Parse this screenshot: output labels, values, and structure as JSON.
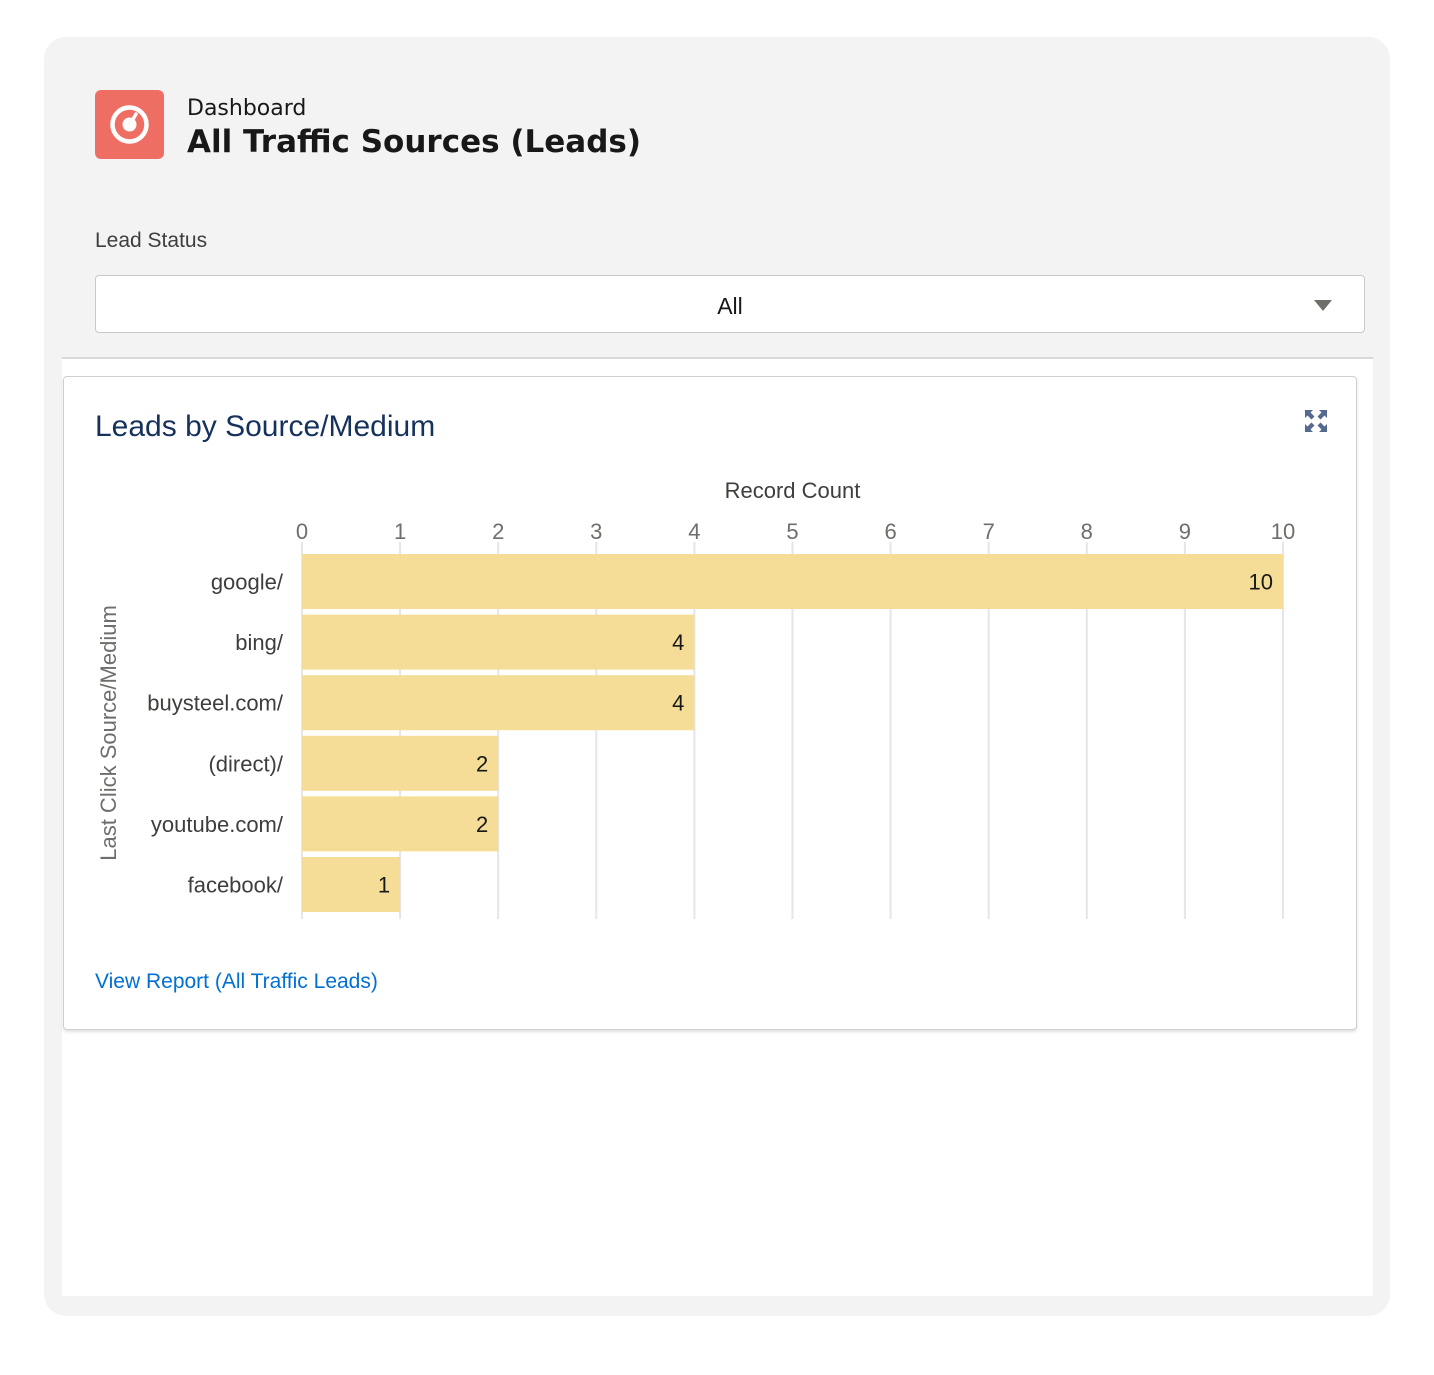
{
  "header": {
    "label": "Dashboard",
    "title": "All Traffic Sources (Leads)",
    "icon": "dashboard-gauge-icon",
    "icon_color": "#ef6e64"
  },
  "filter": {
    "label": "Lead Status",
    "value": "All",
    "caret_icon": "chevron-down-icon"
  },
  "card": {
    "title": "Leads by Source/Medium",
    "expand_icon": "expand-icon",
    "report_link": "View Report (All Traffic Leads)"
  },
  "chart_data": {
    "type": "bar",
    "orientation": "horizontal",
    "title": "",
    "xlabel": "Record Count",
    "ylabel": "Last Click Source/Medium",
    "categories": [
      "google/",
      "bing/",
      "buysteel.com/",
      "(direct)/",
      "youtube.com/",
      "facebook/"
    ],
    "values": [
      10,
      4,
      4,
      2,
      2,
      1
    ],
    "xlim": [
      0,
      10
    ],
    "x_ticks": [
      0,
      1,
      2,
      3,
      4,
      5,
      6,
      7,
      8,
      9,
      10
    ],
    "bar_color": "#f5dd97",
    "grid": true,
    "data_labels": true,
    "x_axis_position": "top"
  }
}
